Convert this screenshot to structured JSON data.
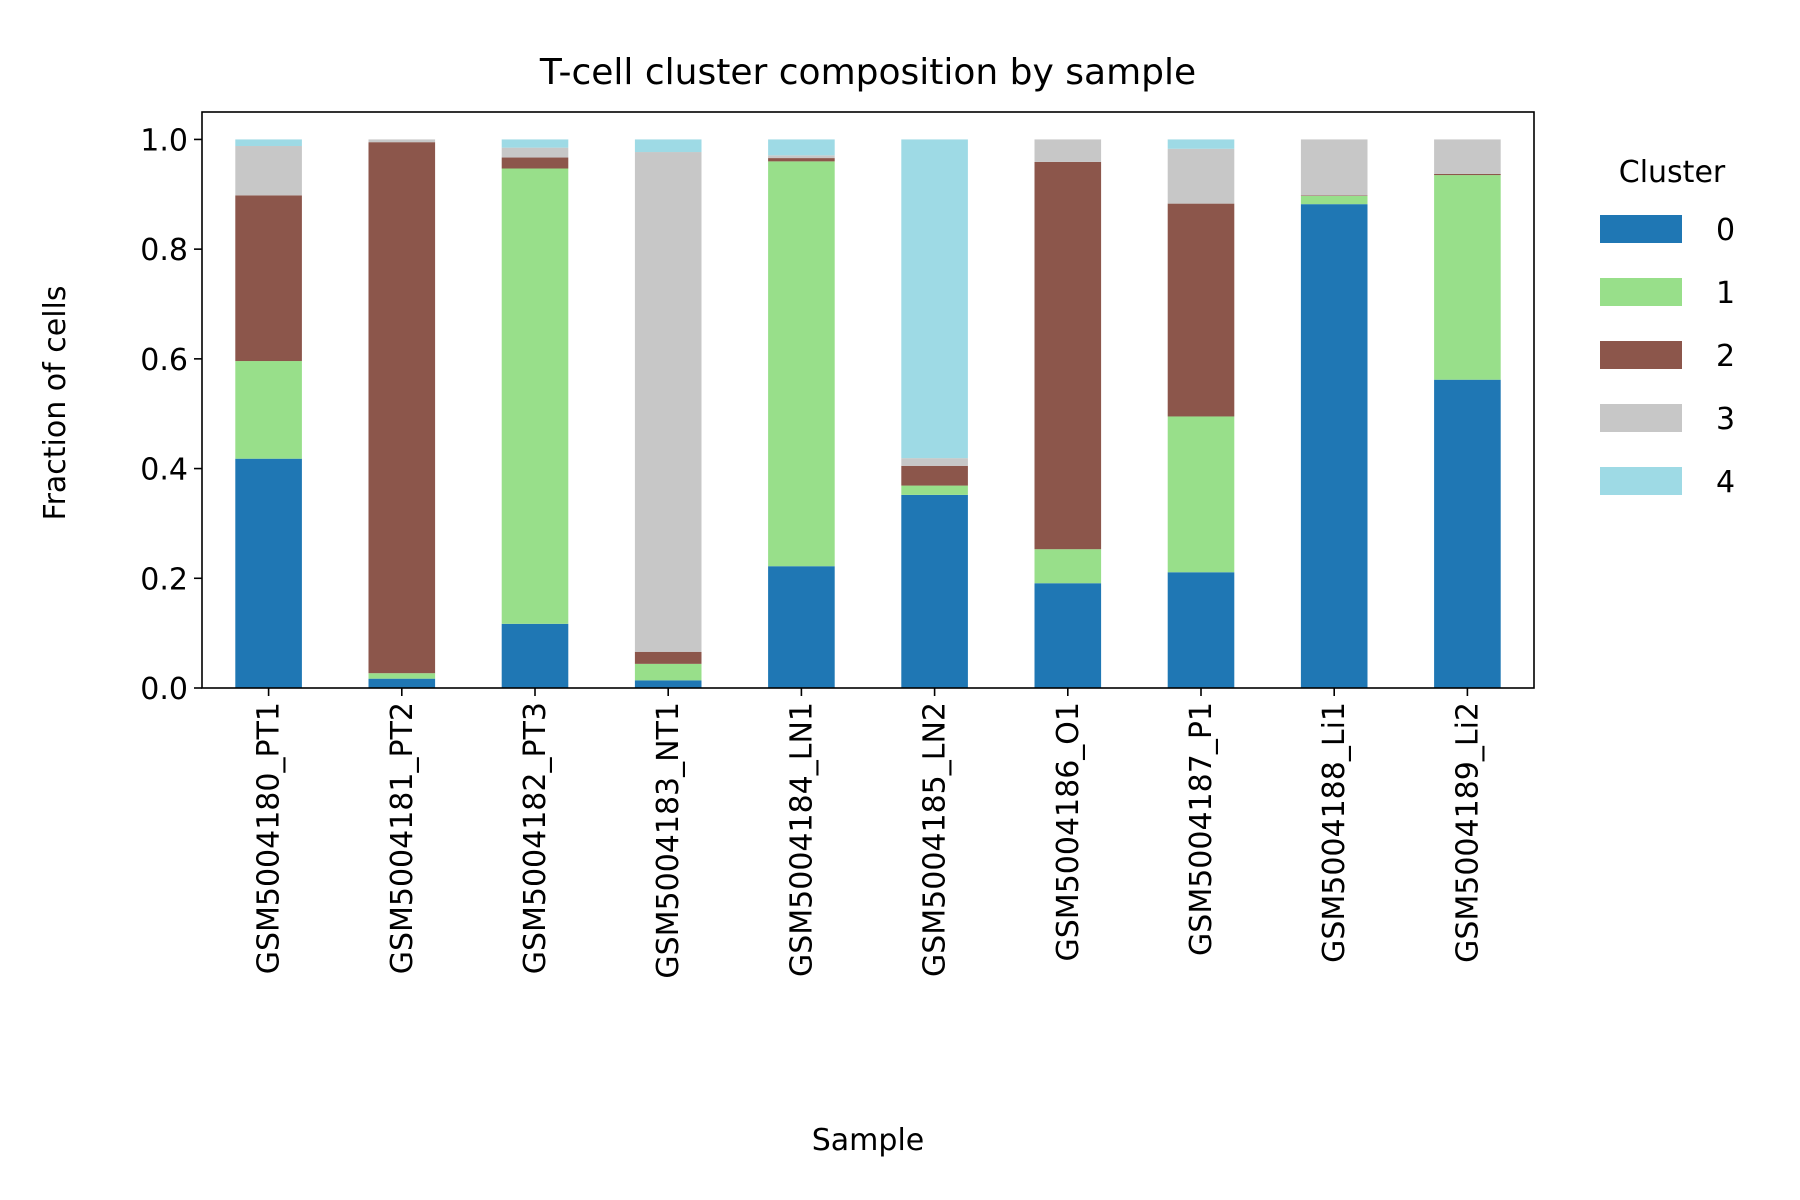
{
  "chart_data": {
    "type": "bar",
    "stacked": true,
    "title": "T-cell cluster composition by sample",
    "xlabel": "Sample",
    "ylabel": "Fraction of cells",
    "ylim": [
      0,
      1.05
    ],
    "yticks": [
      0.0,
      0.2,
      0.4,
      0.6,
      0.8,
      1.0
    ],
    "ytick_labels": [
      "0.0",
      "0.2",
      "0.4",
      "0.6",
      "0.8",
      "1.0"
    ],
    "grid": false,
    "legend": {
      "title": "Cluster",
      "placement": "right, outside plot"
    },
    "categories": [
      "GSM5004180_PT1",
      "GSM5004181_PT2",
      "GSM5004182_PT3",
      "GSM5004183_NT1",
      "GSM5004184_LN1",
      "GSM5004185_LN2",
      "GSM5004186_O1",
      "GSM5004187_P1",
      "GSM5004188_Li1",
      "GSM5004189_Li2"
    ],
    "series": [
      {
        "name": "0",
        "color": "#1f77b4",
        "values": [
          0.418,
          0.017,
          0.117,
          0.014,
          0.222,
          0.352,
          0.191,
          0.211,
          0.882,
          0.562
        ]
      },
      {
        "name": "1",
        "color": "#98df8a",
        "values": [
          0.178,
          0.01,
          0.83,
          0.03,
          0.738,
          0.017,
          0.062,
          0.284,
          0.015,
          0.373
        ]
      },
      {
        "name": "2",
        "color": "#8c564b",
        "values": [
          0.302,
          0.968,
          0.02,
          0.022,
          0.006,
          0.036,
          0.706,
          0.388,
          0.001,
          0.002
        ]
      },
      {
        "name": "3",
        "color": "#c7c7c7",
        "values": [
          0.09,
          0.005,
          0.018,
          0.911,
          0.005,
          0.014,
          0.041,
          0.1,
          0.102,
          0.063
        ]
      },
      {
        "name": "4",
        "color": "#9edae5",
        "values": [
          0.012,
          0.0,
          0.015,
          0.023,
          0.029,
          0.581,
          0.0,
          0.017,
          0.0,
          0.0
        ]
      }
    ]
  }
}
